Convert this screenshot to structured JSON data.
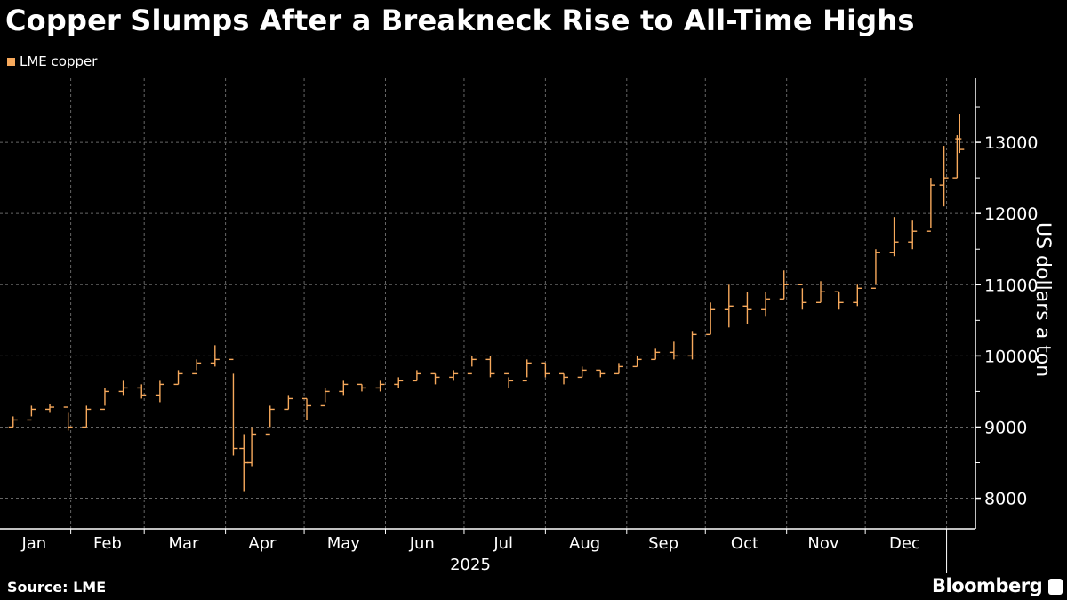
{
  "title": "Copper Slumps After a Breakneck Rise to All-Time Highs",
  "source": "Source: LME",
  "brand": "Bloomberg",
  "colors": {
    "series": "#f7a95c",
    "background": "#000000",
    "grid": "#666666",
    "axis": "#ffffff"
  },
  "chart_data": {
    "type": "ohlc",
    "title": "Copper Slumps After a Breakneck Rise to All-Time Highs",
    "ylabel": "US dollars a ton",
    "xlabel": "2025",
    "ylim": [
      7570,
      13900
    ],
    "xlim": [
      "2025-01-05",
      "2026-01-12"
    ],
    "grid": true,
    "legend_position": "top-left",
    "yticks": [
      8000,
      9000,
      10000,
      11000,
      12000,
      13000
    ],
    "ytick_labels": [
      "8000",
      "9000",
      "10000",
      "11000",
      "12000",
      "13000"
    ],
    "month_ticks": [
      "2025-02-01",
      "2025-03-01",
      "2025-04-01",
      "2025-05-01",
      "2025-06-01",
      "2025-07-01",
      "2025-08-01",
      "2025-09-01",
      "2025-10-01",
      "2025-11-01",
      "2025-12-01",
      "2026-01-01"
    ],
    "xtick_labels": [
      {
        "label": "Jan",
        "date": "2025-01-18"
      },
      {
        "label": "Feb",
        "date": "2025-02-15"
      },
      {
        "label": "Mar",
        "date": "2025-03-16"
      },
      {
        "label": "Apr",
        "date": "2025-04-15"
      },
      {
        "label": "May",
        "date": "2025-05-16"
      },
      {
        "label": "Jun",
        "date": "2025-06-15"
      },
      {
        "label": "Jul",
        "date": "2025-07-16"
      },
      {
        "label": "Aug",
        "date": "2025-08-16"
      },
      {
        "label": "Sep",
        "date": "2025-09-15"
      },
      {
        "label": "Oct",
        "date": "2025-10-16"
      },
      {
        "label": "Nov",
        "date": "2025-11-15"
      },
      {
        "label": "Dec",
        "date": "2025-12-16"
      }
    ],
    "series": [
      {
        "name": "LME copper",
        "columns": [
          "date",
          "high",
          "low",
          "close"
        ],
        "values": [
          [
            "2025-01-03",
            9050,
            8950,
            9000
          ],
          [
            "2025-01-10",
            9150,
            9000,
            9100
          ],
          [
            "2025-01-17",
            9300,
            9150,
            9250
          ],
          [
            "2025-01-24",
            9320,
            9200,
            9280
          ],
          [
            "2025-01-31",
            9200,
            8950,
            9000
          ],
          [
            "2025-02-07",
            9300,
            9000,
            9250
          ],
          [
            "2025-02-14",
            9550,
            9300,
            9500
          ],
          [
            "2025-02-21",
            9650,
            9450,
            9550
          ],
          [
            "2025-02-28",
            9600,
            9400,
            9450
          ],
          [
            "2025-03-07",
            9650,
            9350,
            9600
          ],
          [
            "2025-03-14",
            9800,
            9600,
            9750
          ],
          [
            "2025-03-21",
            9950,
            9800,
            9900
          ],
          [
            "2025-03-28",
            10150,
            9850,
            9950
          ],
          [
            "2025-04-04",
            9750,
            8600,
            8700
          ],
          [
            "2025-04-08",
            8900,
            8100,
            8500
          ],
          [
            "2025-04-11",
            9000,
            8450,
            8900
          ],
          [
            "2025-04-18",
            9300,
            9000,
            9250
          ],
          [
            "2025-04-25",
            9450,
            9250,
            9400
          ],
          [
            "2025-05-02",
            9400,
            9100,
            9300
          ],
          [
            "2025-05-09",
            9550,
            9350,
            9500
          ],
          [
            "2025-05-16",
            9650,
            9450,
            9600
          ],
          [
            "2025-05-23",
            9600,
            9500,
            9550
          ],
          [
            "2025-05-30",
            9650,
            9500,
            9600
          ],
          [
            "2025-06-06",
            9700,
            9550,
            9650
          ],
          [
            "2025-06-13",
            9800,
            9650,
            9750
          ],
          [
            "2025-06-20",
            9750,
            9600,
            9700
          ],
          [
            "2025-06-27",
            9800,
            9650,
            9750
          ],
          [
            "2025-07-04",
            10000,
            9850,
            9950
          ],
          [
            "2025-07-11",
            10000,
            9700,
            9750
          ],
          [
            "2025-07-18",
            9700,
            9550,
            9650
          ],
          [
            "2025-07-25",
            9950,
            9700,
            9900
          ],
          [
            "2025-08-01",
            9900,
            9700,
            9750
          ],
          [
            "2025-08-08",
            9750,
            9600,
            9700
          ],
          [
            "2025-08-15",
            9850,
            9700,
            9800
          ],
          [
            "2025-08-22",
            9800,
            9700,
            9750
          ],
          [
            "2025-08-29",
            9900,
            9750,
            9850
          ],
          [
            "2025-09-05",
            10000,
            9850,
            9950
          ],
          [
            "2025-09-12",
            10100,
            9950,
            10050
          ],
          [
            "2025-09-19",
            10200,
            9950,
            10000
          ],
          [
            "2025-09-26",
            10350,
            9950,
            10300
          ],
          [
            "2025-10-03",
            10750,
            10300,
            10650
          ],
          [
            "2025-10-10",
            11000,
            10400,
            10700
          ],
          [
            "2025-10-17",
            10900,
            10450,
            10650
          ],
          [
            "2025-10-24",
            10900,
            10550,
            10800
          ],
          [
            "2025-10-31",
            11200,
            10800,
            11000
          ],
          [
            "2025-11-07",
            10950,
            10650,
            10750
          ],
          [
            "2025-11-14",
            11050,
            10750,
            10900
          ],
          [
            "2025-11-21",
            10900,
            10650,
            10750
          ],
          [
            "2025-11-28",
            11000,
            10700,
            10950
          ],
          [
            "2025-12-05",
            11500,
            11000,
            11450
          ],
          [
            "2025-12-12",
            11950,
            11400,
            11600
          ],
          [
            "2025-12-19",
            11900,
            11500,
            11750
          ],
          [
            "2025-12-26",
            12500,
            11800,
            12400
          ],
          [
            "2025-12-31",
            12950,
            12100,
            12500
          ],
          [
            "2026-01-05",
            13100,
            12500,
            13050
          ],
          [
            "2026-01-06",
            13400,
            12850,
            12900
          ]
        ]
      }
    ]
  }
}
